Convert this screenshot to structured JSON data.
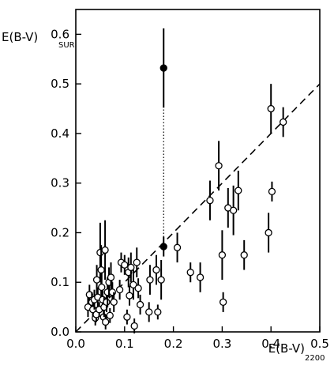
{
  "chart_data": {
    "type": "scatter",
    "title": "",
    "xlabel": "E(B-V)",
    "xlabel_subscript": "2200",
    "ylabel": "E(B-V)",
    "ylabel_subscript": "SUR",
    "xlim": [
      0,
      0.5
    ],
    "ylim": [
      0,
      0.65
    ],
    "xticks": [
      "0.0",
      "0.1",
      "0.2",
      "0.3",
      "0.4",
      "0.5"
    ],
    "yticks": [
      "0.0",
      "0.1",
      "0.2",
      "0.3",
      "0.4",
      "0.5",
      "0.6"
    ],
    "grid": false,
    "legend": "none",
    "fit_line": {
      "style": "dashed",
      "slope": 1.0,
      "intercept": 0.0
    },
    "connector": {
      "style": "dotted",
      "x": 0.18,
      "y_from": 0.172,
      "y_to": 0.532
    },
    "series": [
      {
        "marker": "open-circle",
        "points": [
          [
            0.025,
            0.05,
            0.02
          ],
          [
            0.028,
            0.075,
            0.02
          ],
          [
            0.033,
            0.06,
            0.02
          ],
          [
            0.035,
            0.045,
            0.015
          ],
          [
            0.038,
            0.065,
            0.02
          ],
          [
            0.04,
            0.028,
            0.015
          ],
          [
            0.042,
            0.035,
            0.015
          ],
          [
            0.043,
            0.105,
            0.03
          ],
          [
            0.045,
            0.07,
            0.02
          ],
          [
            0.048,
            0.045,
            0.015
          ],
          [
            0.05,
            0.16,
            0.06
          ],
          [
            0.052,
            0.125,
            0.05
          ],
          [
            0.053,
            0.09,
            0.03
          ],
          [
            0.055,
            0.065,
            0.02
          ],
          [
            0.057,
            0.03,
            0.015
          ],
          [
            0.058,
            0.05,
            0.02
          ],
          [
            0.06,
            0.165,
            0.06
          ],
          [
            0.061,
            0.02,
            0.015
          ],
          [
            0.063,
            0.06,
            0.02
          ],
          [
            0.065,
            0.08,
            0.03
          ],
          [
            0.068,
            0.1,
            0.03
          ],
          [
            0.07,
            0.033,
            0.015
          ],
          [
            0.072,
            0.11,
            0.03
          ],
          [
            0.075,
            0.08,
            0.02
          ],
          [
            0.078,
            0.06,
            0.02
          ],
          [
            0.09,
            0.085,
            0.02
          ],
          [
            0.093,
            0.14,
            0.02
          ],
          [
            0.1,
            0.135,
            0.02
          ],
          [
            0.105,
            0.03,
            0.015
          ],
          [
            0.108,
            0.12,
            0.03
          ],
          [
            0.11,
            0.073,
            0.02
          ],
          [
            0.113,
            0.13,
            0.03
          ],
          [
            0.118,
            0.095,
            0.03
          ],
          [
            0.12,
            0.012,
            0.015
          ],
          [
            0.125,
            0.14,
            0.03
          ],
          [
            0.128,
            0.088,
            0.02
          ],
          [
            0.132,
            0.055,
            0.02
          ],
          [
            0.15,
            0.04,
            0.02
          ],
          [
            0.152,
            0.105,
            0.03
          ],
          [
            0.165,
            0.125,
            0.03
          ],
          [
            0.168,
            0.04,
            0.015
          ],
          [
            0.175,
            0.105,
            0.04
          ],
          [
            0.208,
            0.17,
            0.03
          ],
          [
            0.235,
            0.12,
            0.02
          ],
          [
            0.255,
            0.11,
            0.03
          ],
          [
            0.275,
            0.265,
            0.04
          ],
          [
            0.293,
            0.335,
            0.05
          ],
          [
            0.3,
            0.155,
            0.05
          ],
          [
            0.302,
            0.06,
            0.02
          ],
          [
            0.312,
            0.25,
            0.04
          ],
          [
            0.323,
            0.245,
            0.05
          ],
          [
            0.333,
            0.285,
            0.04
          ],
          [
            0.345,
            0.155,
            0.03
          ],
          [
            0.395,
            0.2,
            0.04
          ],
          [
            0.4,
            0.45,
            0.05
          ],
          [
            0.402,
            0.283,
            0.02
          ],
          [
            0.425,
            0.423,
            0.03
          ]
        ]
      },
      {
        "marker": "filled-circle",
        "points": [
          [
            0.18,
            0.532,
            0.08
          ],
          [
            0.18,
            0.172,
            0.02
          ]
        ]
      }
    ]
  }
}
